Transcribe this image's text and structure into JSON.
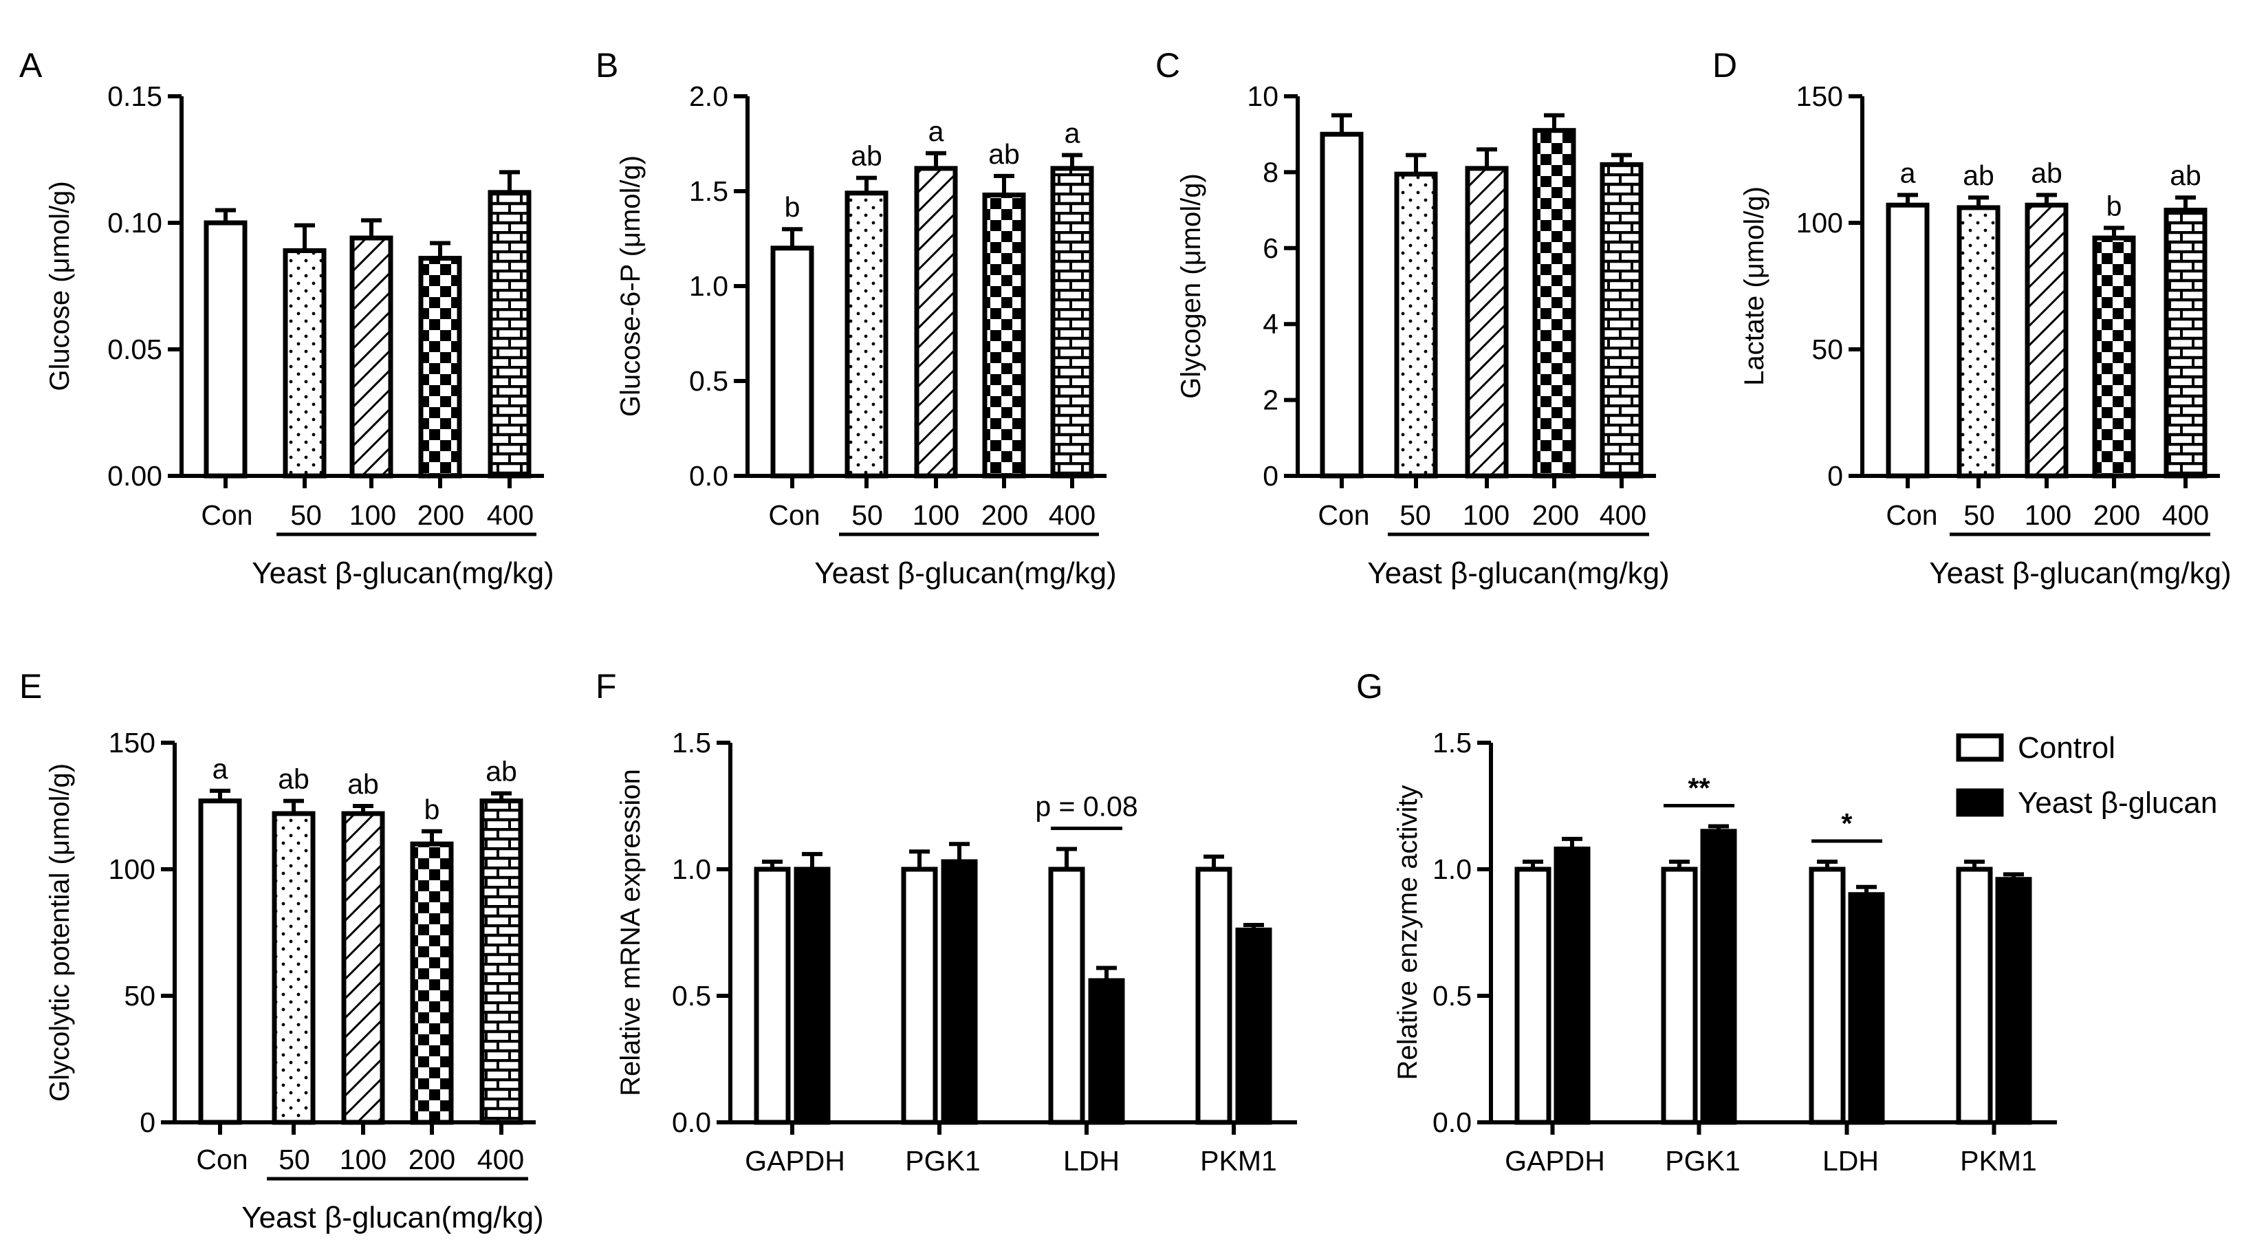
{
  "chart_data": [
    {
      "panel": "A",
      "type": "bar",
      "categories": [
        "Con",
        "50",
        "100",
        "200",
        "400"
      ],
      "values": [
        0.1,
        0.089,
        0.094,
        0.086,
        0.112
      ],
      "errors": [
        0.005,
        0.01,
        0.007,
        0.006,
        0.008
      ],
      "labels": [
        "",
        "",
        "",
        "",
        ""
      ],
      "ylabel": "Glucose (μmol/g)",
      "xlabel": "Yeast β-glucan(mg/kg)",
      "ylim": [
        0,
        0.15
      ],
      "yticks": [
        "0.00",
        "0.05",
        "0.10",
        "0.15"
      ],
      "patterns": [
        "white",
        "dots",
        "hatch",
        "checker",
        "brick"
      ]
    },
    {
      "panel": "B",
      "type": "bar",
      "categories": [
        "Con",
        "50",
        "100",
        "200",
        "400"
      ],
      "values": [
        1.2,
        1.49,
        1.62,
        1.48,
        1.62
      ],
      "errors": [
        0.1,
        0.08,
        0.08,
        0.1,
        0.07
      ],
      "labels": [
        "b",
        "ab",
        "a",
        "ab",
        "a"
      ],
      "ylabel": "Glucose-6-P (μmol/g)",
      "xlabel": "Yeast β-glucan(mg/kg)",
      "ylim": [
        0,
        2.0
      ],
      "yticks": [
        "0.0",
        "0.5",
        "1.0",
        "1.5",
        "2.0"
      ],
      "patterns": [
        "white",
        "dots",
        "hatch",
        "checker",
        "brick"
      ]
    },
    {
      "panel": "C",
      "type": "bar",
      "categories": [
        "Con",
        "50",
        "100",
        "200",
        "400"
      ],
      "values": [
        9.0,
        7.95,
        8.1,
        9.1,
        8.2
      ],
      "errors": [
        0.5,
        0.5,
        0.5,
        0.4,
        0.25
      ],
      "labels": [
        "",
        "",
        "",
        "",
        ""
      ],
      "ylabel": "Glycogen (μmol/g)",
      "xlabel": "Yeast β-glucan(mg/kg)",
      "ylim": [
        0,
        10
      ],
      "yticks": [
        "0",
        "2",
        "4",
        "6",
        "8",
        "10"
      ],
      "patterns": [
        "white",
        "dots",
        "hatch",
        "checker",
        "brick"
      ]
    },
    {
      "panel": "D",
      "type": "bar",
      "categories": [
        "Con",
        "50",
        "100",
        "200",
        "400"
      ],
      "values": [
        107,
        106,
        107,
        94,
        105
      ],
      "errors": [
        4,
        4,
        4,
        4,
        5
      ],
      "labels": [
        "a",
        "ab",
        "ab",
        "b",
        "ab"
      ],
      "ylabel": "Lactate (μmol/g)",
      "xlabel": "Yeast β-glucan(mg/kg)",
      "ylim": [
        0,
        150
      ],
      "yticks": [
        "0",
        "50",
        "100",
        "150"
      ],
      "patterns": [
        "white",
        "dots",
        "hatch",
        "checker",
        "brick"
      ]
    },
    {
      "panel": "E",
      "type": "bar",
      "categories": [
        "Con",
        "50",
        "100",
        "200",
        "400"
      ],
      "values": [
        127,
        122,
        122,
        110,
        127
      ],
      "errors": [
        4,
        5,
        3,
        5,
        3
      ],
      "labels": [
        "a",
        "ab",
        "ab",
        "b",
        "ab"
      ],
      "ylabel": "Glycolytic potential (μmol/g)",
      "xlabel": "Yeast β-glucan(mg/kg)",
      "ylim": [
        0,
        150
      ],
      "yticks": [
        "0",
        "50",
        "100",
        "150"
      ],
      "patterns": [
        "white",
        "dots",
        "hatch",
        "checker",
        "brick"
      ]
    },
    {
      "panel": "F",
      "type": "bar",
      "categories": [
        "GAPDH",
        "PGK1",
        "LDH",
        "PKM1"
      ],
      "series": [
        {
          "name": "Control",
          "values": [
            1.0,
            1.0,
            1.0,
            1.0
          ],
          "errors": [
            0.03,
            0.07,
            0.08,
            0.05
          ]
        },
        {
          "name": "Yeast β-glucan",
          "values": [
            1.0,
            1.03,
            0.56,
            0.76
          ],
          "errors": [
            0.06,
            0.07,
            0.05,
            0.02
          ]
        }
      ],
      "annotations": [
        {
          "category": "LDH",
          "text": "p = 0.08"
        }
      ],
      "ylabel": "Relative mRNA expression",
      "ylim": [
        0,
        1.5
      ],
      "yticks": [
        "0.0",
        "0.5",
        "1.0",
        "1.5"
      ]
    },
    {
      "panel": "G",
      "type": "bar",
      "categories": [
        "GAPDH",
        "PGK1",
        "LDH",
        "PKM1"
      ],
      "series": [
        {
          "name": "Control",
          "values": [
            1.0,
            1.0,
            1.0,
            1.0
          ],
          "errors": [
            0.03,
            0.03,
            0.03,
            0.03
          ]
        },
        {
          "name": "Yeast β-glucan",
          "values": [
            1.08,
            1.15,
            0.9,
            0.96
          ],
          "errors": [
            0.04,
            0.02,
            0.03,
            0.02
          ]
        }
      ],
      "annotations": [
        {
          "category": "PGK1",
          "text": "**"
        },
        {
          "category": "LDH",
          "text": "*"
        }
      ],
      "ylabel": "Relative enzyme activity",
      "ylim": [
        0,
        1.5
      ],
      "yticks": [
        "0.0",
        "0.5",
        "1.0",
        "1.5"
      ],
      "legend": {
        "position": "top-right",
        "entries": [
          "Control",
          "Yeast β-glucan"
        ]
      }
    }
  ]
}
